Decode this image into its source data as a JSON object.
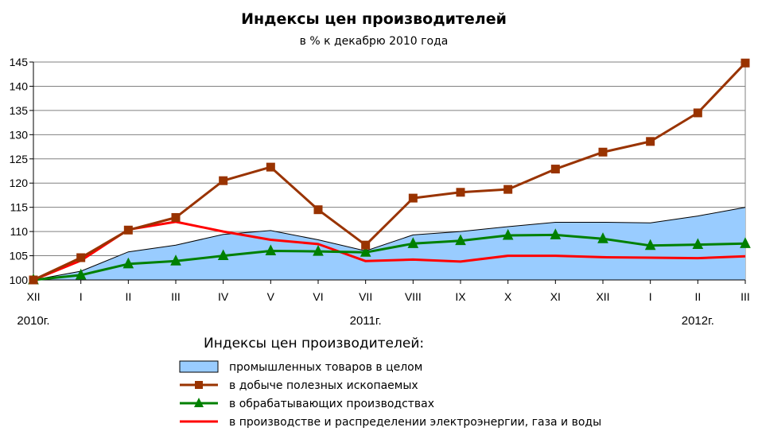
{
  "chart_data": {
    "type": "line",
    "title": "Индексы цен производителей",
    "subtitle": "в  % к декабрю 2010 года",
    "categories": [
      "XII",
      "I",
      "II",
      "III",
      "IV",
      "V",
      "VI",
      "VII",
      "VIII",
      "IX",
      "X",
      "XI",
      "XII",
      "I",
      "II",
      "III"
    ],
    "year_labels": [
      {
        "label": "2010г.",
        "category_index": 0
      },
      {
        "label": "2011г.",
        "category_index": 7
      },
      {
        "label": "2012г.",
        "category_index": 14
      }
    ],
    "ylim": [
      100,
      145
    ],
    "yticks": [
      100,
      105,
      110,
      115,
      120,
      125,
      130,
      135,
      140,
      145
    ],
    "grid": true,
    "legend_title": "Индексы цен производителей:",
    "legend_position": "bottom",
    "series": [
      {
        "name": "промышленных товаров  в  целом",
        "kind": "area",
        "color": "#99ccff",
        "edge_color": "#000000",
        "values": [
          100,
          101.8,
          105.8,
          107.2,
          109.4,
          110.2,
          108.3,
          106.0,
          109.3,
          110.0,
          111.0,
          111.9,
          111.9,
          111.8,
          113.2,
          115.0
        ]
      },
      {
        "name": "в  добыче полезных  ископаемых",
        "kind": "line",
        "marker": "square",
        "color": "#993300",
        "values": [
          100,
          104.6,
          110.3,
          112.9,
          120.5,
          123.3,
          114.5,
          107.2,
          116.9,
          118.1,
          118.7,
          122.9,
          126.4,
          128.6,
          134.5,
          144.8
        ]
      },
      {
        "name": "в  обрабатывающих  производствах",
        "kind": "line",
        "marker": "triangle",
        "color": "#008000",
        "values": [
          100,
          101.0,
          103.3,
          103.9,
          105.0,
          106.0,
          105.9,
          105.7,
          107.5,
          108.1,
          109.2,
          109.3,
          108.5,
          107.1,
          107.3,
          107.5
        ]
      },
      {
        "name": "в  производстве и распределении электроэнергии,  газа и  воды",
        "kind": "line",
        "marker": "none",
        "color": "#ff0000",
        "values": [
          100,
          104.0,
          110.4,
          112.0,
          110.0,
          108.3,
          107.4,
          103.9,
          104.2,
          103.8,
          105.0,
          105.0,
          104.7,
          104.6,
          104.5,
          104.9
        ]
      }
    ]
  }
}
